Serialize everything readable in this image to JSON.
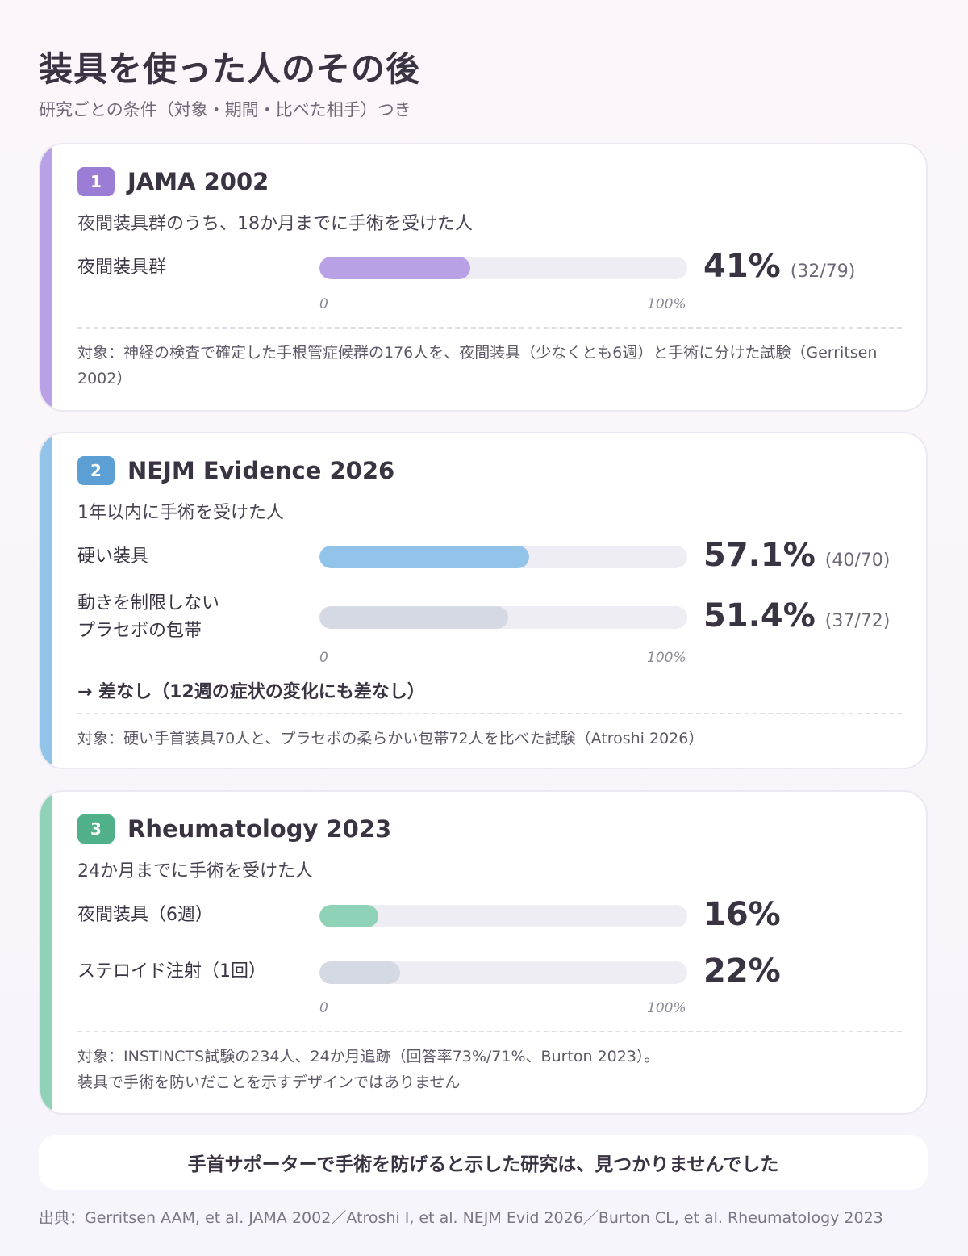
{
  "header": {
    "title": "装具を使った人のその後",
    "subtitle": "研究ごとの条件（対象・期間・比べた相手）つき"
  },
  "colors": {
    "purple": "#b9a1e6",
    "purple_badge": "#9c7dd6",
    "blue": "#92c3e8",
    "blue_badge": "#5b9fd4",
    "green": "#8fd2b7",
    "green_badge": "#4fb08a",
    "gray_bar": "#d5d9e4"
  },
  "axis": {
    "min_label": "0",
    "max_label": "100%"
  },
  "cards": [
    {
      "number": "1",
      "title": "JAMA 2002",
      "subtitle": "夜間装具群のうち、18か月までに手術を受けた人",
      "rows": [
        {
          "label": "夜間装具群",
          "value_text": "41%",
          "count": "(32/79)"
        }
      ],
      "note": "対象：神経の検査で確定した手根管症候群の176人を、夜間装具（少なくとも6週）と手術に分けた試験（Gerritsen 2002）"
    },
    {
      "number": "2",
      "title": "NEJM Evidence 2026",
      "subtitle": "1年以内に手術を受けた人",
      "rows": [
        {
          "label": "硬い装具",
          "value_text": "57.1%",
          "count": "(40/70)"
        },
        {
          "label": "動きを制限しない\nプラセボの包帯",
          "value_text": "51.4%",
          "count": "(37/72)"
        }
      ],
      "conclusion": "→ 差なし（12週の症状の変化にも差なし）",
      "note": "対象：硬い手首装具70人と、プラセボの柔らかい包帯72人を比べた試験（Atroshi 2026）"
    },
    {
      "number": "3",
      "title": "Rheumatology 2023",
      "subtitle": "24か月までに手術を受けた人",
      "rows": [
        {
          "label": "夜間装具（6週）",
          "value_text": "16%",
          "count": ""
        },
        {
          "label": "ステロイド注射（1回）",
          "value_text": "22%",
          "count": ""
        }
      ],
      "note": "対象：INSTINCTS試験の234人、24か月追跡（回答率73%/71%、Burton 2023）。\n装具で手術を防いだことを示すデザインではありません"
    }
  ],
  "footer": {
    "message": "手首サポーターで手術を防げると示した研究は、見つかりませんでした",
    "source": "出典：Gerritsen AAM, et al. JAMA 2002／Atroshi I, et al. NEJM Evid 2026／Burton CL, et al. Rheumatology 2023"
  },
  "chart_data": [
    {
      "type": "bar",
      "orientation": "horizontal",
      "title": "JAMA 2002",
      "subtitle": "夜間装具群のうち、18か月までに手術を受けた人",
      "categories": [
        "夜間装具群"
      ],
      "values": [
        41
      ],
      "counts": [
        "32/79"
      ],
      "xlim": [
        0,
        100
      ],
      "unit": "%"
    },
    {
      "type": "bar",
      "orientation": "horizontal",
      "title": "NEJM Evidence 2026",
      "subtitle": "1年以内に手術を受けた人",
      "categories": [
        "硬い装具",
        "動きを制限しないプラセボの包帯"
      ],
      "values": [
        57.1,
        51.4
      ],
      "counts": [
        "40/70",
        "37/72"
      ],
      "xlim": [
        0,
        100
      ],
      "unit": "%"
    },
    {
      "type": "bar",
      "orientation": "horizontal",
      "title": "Rheumatology 2023",
      "subtitle": "24か月までに手術を受けた人",
      "categories": [
        "夜間装具（6週）",
        "ステロイド注射（1回）"
      ],
      "values": [
        16,
        22
      ],
      "xlim": [
        0,
        100
      ],
      "unit": "%"
    }
  ]
}
